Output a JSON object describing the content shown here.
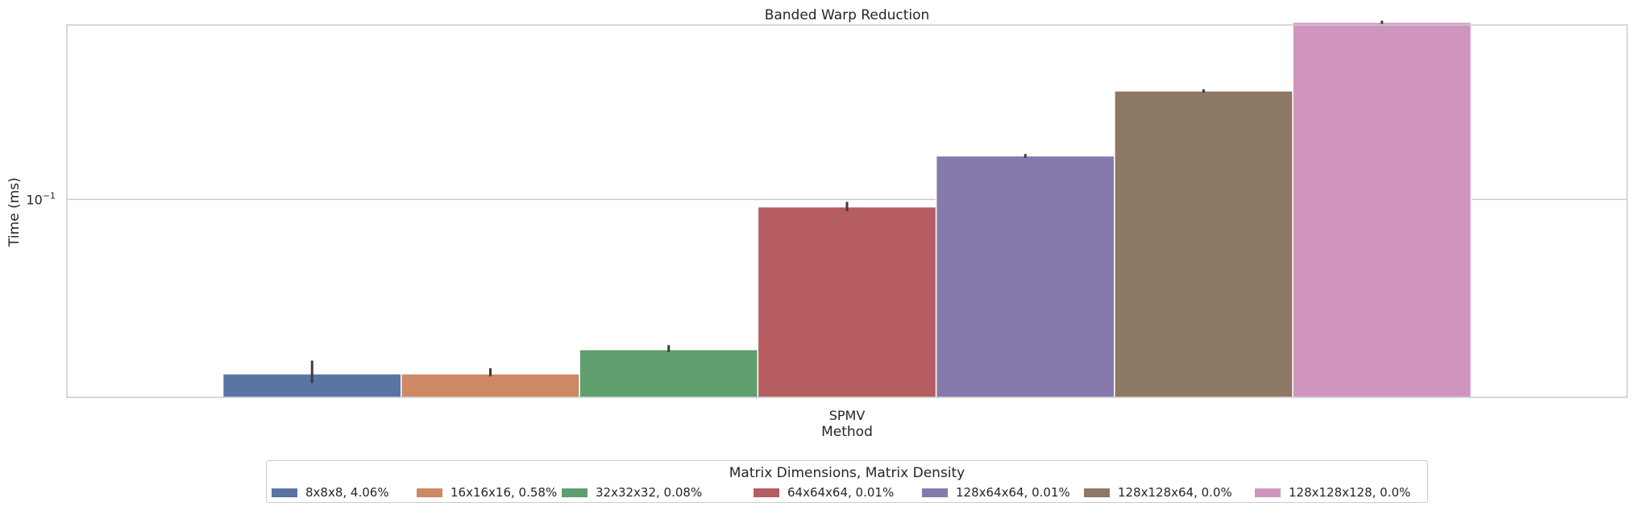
{
  "chart_data": {
    "type": "bar",
    "title": "Banded Warp Reduction",
    "xlabel": "Method",
    "ylabel": "Time (ms)",
    "yscale": "log",
    "ylim": [
      0.0293,
      0.295
    ],
    "y_tick_labels": [
      {
        "base": "10",
        "exp": "−1",
        "value": 0.1
      }
    ],
    "grid": true,
    "categories": [
      "SPMV"
    ],
    "legend": {
      "title": "Matrix Dimensions, Matrix Density",
      "placement": "bottom-center"
    },
    "series": [
      {
        "name": "8x8x8, 4.06%",
        "values": [
          0.0339
        ],
        "error": [
          0.032,
          0.0368
        ],
        "color": "#5875a4"
      },
      {
        "name": "16x16x16, 0.58%",
        "values": [
          0.0339
        ],
        "error": [
          0.0334,
          0.0351
        ],
        "color": "#cc8963"
      },
      {
        "name": "32x32x32, 0.08%",
        "values": [
          0.0394
        ],
        "error": [
          0.0388,
          0.0405
        ],
        "color": "#5f9e6e"
      },
      {
        "name": "64x64x64, 0.01%",
        "values": [
          0.0955
        ],
        "error": [
          0.093,
          0.0985
        ],
        "color": "#b55d60"
      },
      {
        "name": "128x64x64, 0.01%",
        "values": [
          0.131
        ],
        "error": [
          0.1295,
          0.1325
        ],
        "color": "#857aab"
      },
      {
        "name": "128x128x64, 0.0%",
        "values": [
          0.196
        ],
        "error": [
          0.194,
          0.198
        ],
        "color": "#8d7866"
      },
      {
        "name": "128x128x128, 0.0%",
        "values": [
          0.3
        ],
        "error": [
          0.297,
          0.303
        ],
        "color": "#d095bf"
      }
    ]
  }
}
